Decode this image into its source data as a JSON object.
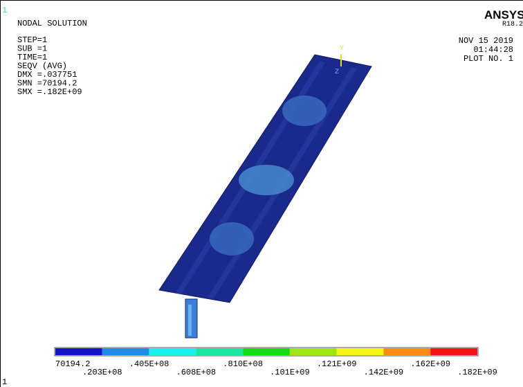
{
  "window_number": "1",
  "info": {
    "title": "NODAL SOLUTION",
    "lines": [
      "STEP=1",
      "SUB =1",
      "TIME=1",
      "SEQV     (AVG)",
      "DMX =.037751",
      "SMN =70194.2",
      "SMX =.182E+09"
    ]
  },
  "brand": {
    "name": "ANSYS",
    "version": "R18.2",
    "date": "NOV 15 2019",
    "time": "01:44:28",
    "plot": "PLOT NO.   1"
  },
  "triad": {
    "y": "Y",
    "z": "Z"
  },
  "legend": {
    "colors": [
      "#1414c8",
      "#1e8ce6",
      "#19f0f0",
      "#19e6a0",
      "#14dc14",
      "#a0e614",
      "#f5f514",
      "#fa8c14",
      "#f01414"
    ],
    "labels": [
      "70194.2",
      ".203E+08",
      ".405E+08",
      ".608E+08",
      ".810E+08",
      ".101E+09",
      ".121E+09",
      ".142E+09",
      ".162E+09",
      ".182E+09"
    ]
  },
  "footer_number": "1"
}
